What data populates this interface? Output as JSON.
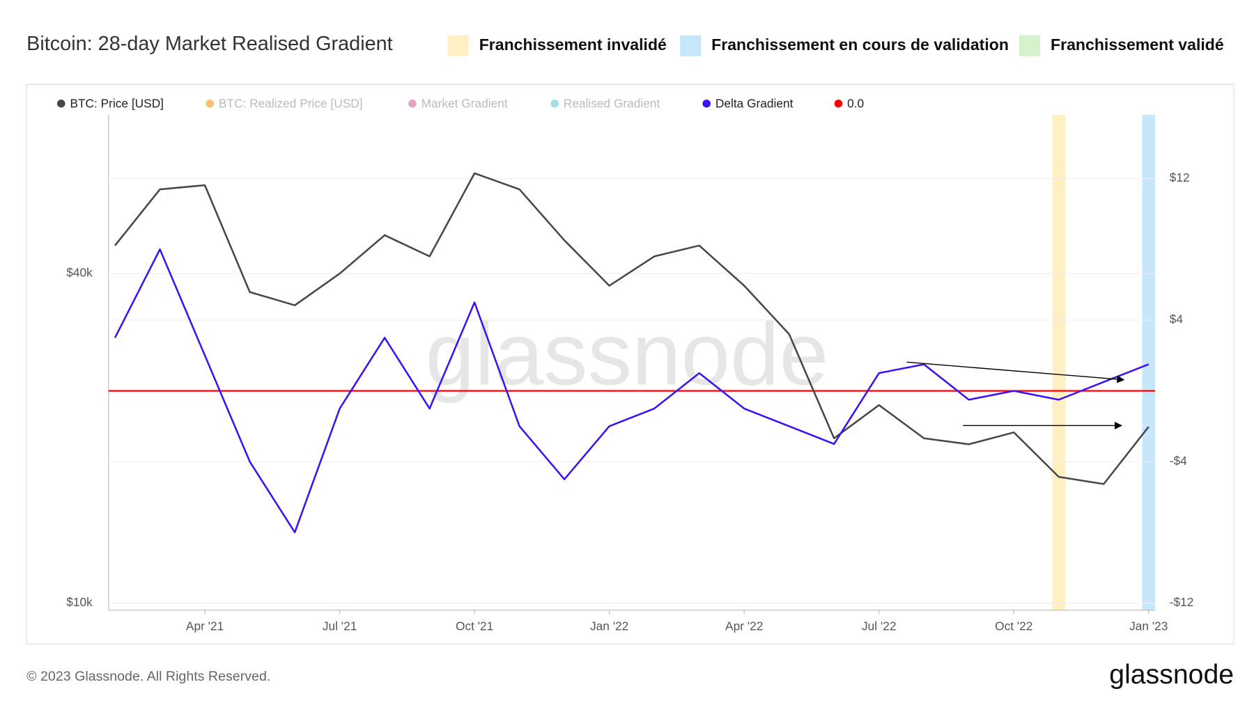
{
  "chart_data": {
    "type": "line",
    "title": "Bitcoin: 28-day Market Realised Gradient",
    "header_legend": [
      {
        "label": "Franchissement invalidé",
        "color": "#fdf1c4"
      },
      {
        "label": "Franchissement en cours de validation",
        "color": "#c6e7fb"
      },
      {
        "label": "Franchissement validé",
        "color": "#d5f2cc"
      }
    ],
    "x": [
      "2021-02",
      "2021-03",
      "2021-04",
      "2021-05",
      "2021-06",
      "2021-07",
      "2021-08",
      "2021-09",
      "2021-10",
      "2021-11",
      "2021-12",
      "2022-01",
      "2022-02",
      "2022-03",
      "2022-04",
      "2022-05",
      "2022-06",
      "2022-07",
      "2022-08",
      "2022-09",
      "2022-10",
      "2022-11",
      "2022-12",
      "2023-01"
    ],
    "xlim": [
      "2021-02",
      "2023-01"
    ],
    "xticks": [
      {
        "value": "2021-04",
        "label": "Apr '21"
      },
      {
        "value": "2021-07",
        "label": "Jul '21"
      },
      {
        "value": "2021-10",
        "label": "Oct '21"
      },
      {
        "value": "2022-01",
        "label": "Jan '22"
      },
      {
        "value": "2022-04",
        "label": "Apr '22"
      },
      {
        "value": "2022-07",
        "label": "Jul '22"
      },
      {
        "value": "2022-10",
        "label": "Oct '22"
      },
      {
        "value": "2023-01",
        "label": "Jan '23"
      }
    ],
    "ylim": [
      9700,
      78000
    ],
    "yscale": "log",
    "yticks": [
      {
        "value": 10000,
        "label": "$10k"
      },
      {
        "value": 40000,
        "label": "$40k"
      }
    ],
    "y2lim": [
      -12.4,
      15.6
    ],
    "y2ticks": [
      {
        "value": -12,
        "label": "-$12"
      },
      {
        "value": -4,
        "label": "-$4"
      },
      {
        "value": 4,
        "label": "$4"
      },
      {
        "value": 12,
        "label": "$12"
      }
    ],
    "series": [
      {
        "name": "BTC: Price [USD]",
        "color": "#474747",
        "values": [
          45000,
          57000,
          58000,
          37000,
          35000,
          40000,
          47000,
          43000,
          61000,
          57000,
          46000,
          38000,
          43000,
          45000,
          38000,
          31000,
          20000,
          23000,
          20000,
          19500,
          20500,
          17000,
          16500,
          21000
        ]
      },
      {
        "name": "Delta Gradient",
        "color": "#3d10f5",
        "axis": "y2",
        "values": [
          3,
          8,
          2,
          -4,
          -8,
          -1,
          3,
          -1,
          5,
          -2,
          -5,
          -2,
          -1,
          1,
          -1,
          -2,
          -3,
          1,
          1.5,
          -0.5,
          0,
          -0.5,
          0.5,
          1.5
        ]
      }
    ],
    "hidden_series": [
      {
        "name": "BTC: Realized Price [USD]",
        "color": "#f7931a"
      },
      {
        "name": "Market Gradient",
        "color": "#d3629b"
      },
      {
        "name": "Realised Gradient",
        "color": "#6cc7d8"
      }
    ],
    "reference_line": {
      "name": "0.0",
      "value": 0,
      "color": "#ff0000",
      "axis": "y2"
    },
    "bands": [
      {
        "x": "2022-11",
        "color": "#fdf1c4"
      },
      {
        "x": "2023-01",
        "color": "#c6e7fb"
      }
    ],
    "watermark": "glassnode",
    "footer": "© 2023 Glassnode. All Rights Reserved.",
    "logo": "glassnode"
  }
}
